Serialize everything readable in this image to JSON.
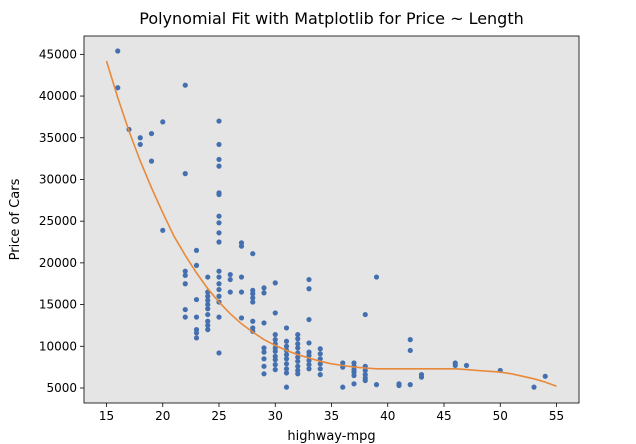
{
  "chart_data": {
    "type": "scatter",
    "title": "Polynomial Fit with Matplotlib for Price ~ Length",
    "xlabel": "highway-mpg",
    "ylabel": "Price of Cars",
    "xlim": [
      13,
      57
    ],
    "ylim": [
      3200,
      47200
    ],
    "xticks": [
      15,
      20,
      25,
      30,
      35,
      40,
      45,
      50,
      55
    ],
    "yticks": [
      5000,
      10000,
      15000,
      20000,
      25000,
      30000,
      35000,
      40000,
      45000
    ],
    "grid": false,
    "background": "#e5e5e5",
    "colors": {
      "points": "#4470b0",
      "fit": "#e8893a"
    },
    "points": [
      [
        16,
        45400
      ],
      [
        16,
        41000
      ],
      [
        17,
        36000
      ],
      [
        18,
        35000
      ],
      [
        18,
        34200
      ],
      [
        19,
        35500
      ],
      [
        19,
        32200
      ],
      [
        20,
        36900
      ],
      [
        20,
        23900
      ],
      [
        22,
        41300
      ],
      [
        22,
        30700
      ],
      [
        22,
        19000
      ],
      [
        22,
        18500
      ],
      [
        22,
        17500
      ],
      [
        22,
        14400
      ],
      [
        22,
        13500
      ],
      [
        23,
        21500
      ],
      [
        23,
        19700
      ],
      [
        23,
        15600
      ],
      [
        23,
        13500
      ],
      [
        23,
        12000
      ],
      [
        23,
        11600
      ],
      [
        23,
        11000
      ],
      [
        24,
        18300
      ],
      [
        24,
        16500
      ],
      [
        24,
        16000
      ],
      [
        24,
        15500
      ],
      [
        24,
        15000
      ],
      [
        24,
        14500
      ],
      [
        24,
        13800
      ],
      [
        24,
        13000
      ],
      [
        24,
        12500
      ],
      [
        24,
        12000
      ],
      [
        25,
        37000
      ],
      [
        25,
        34200
      ],
      [
        25,
        32400
      ],
      [
        25,
        31600
      ],
      [
        25,
        28400
      ],
      [
        25,
        28200
      ],
      [
        25,
        25600
      ],
      [
        25,
        24800
      ],
      [
        25,
        23600
      ],
      [
        25,
        22500
      ],
      [
        25,
        19000
      ],
      [
        25,
        18300
      ],
      [
        25,
        17500
      ],
      [
        25,
        16800
      ],
      [
        25,
        16000
      ],
      [
        25,
        15300
      ],
      [
        25,
        13500
      ],
      [
        25,
        9200
      ],
      [
        26,
        18600
      ],
      [
        26,
        18000
      ],
      [
        26,
        16500
      ],
      [
        27,
        22400
      ],
      [
        27,
        22000
      ],
      [
        27,
        18300
      ],
      [
        27,
        16500
      ],
      [
        27,
        13400
      ],
      [
        28,
        21100
      ],
      [
        28,
        16700
      ],
      [
        28,
        16300
      ],
      [
        28,
        15800
      ],
      [
        28,
        15300
      ],
      [
        28,
        13000
      ],
      [
        28,
        12200
      ],
      [
        28,
        11800
      ],
      [
        29,
        17000
      ],
      [
        29,
        16400
      ],
      [
        29,
        12800
      ],
      [
        29,
        9800
      ],
      [
        29,
        9300
      ],
      [
        29,
        8500
      ],
      [
        29,
        7600
      ],
      [
        29,
        6700
      ],
      [
        30,
        17600
      ],
      [
        30,
        14000
      ],
      [
        30,
        11400
      ],
      [
        30,
        10800
      ],
      [
        30,
        10300
      ],
      [
        30,
        9800
      ],
      [
        30,
        9400
      ],
      [
        30,
        8800
      ],
      [
        30,
        8400
      ],
      [
        30,
        7800
      ],
      [
        30,
        7200
      ],
      [
        31,
        12200
      ],
      [
        31,
        10600
      ],
      [
        31,
        10000
      ],
      [
        31,
        9500
      ],
      [
        31,
        9000
      ],
      [
        31,
        8500
      ],
      [
        31,
        7900
      ],
      [
        31,
        7300
      ],
      [
        31,
        6800
      ],
      [
        31,
        5100
      ],
      [
        32,
        11400
      ],
      [
        32,
        10900
      ],
      [
        32,
        10300
      ],
      [
        32,
        9800
      ],
      [
        32,
        9200
      ],
      [
        32,
        8700
      ],
      [
        32,
        8200
      ],
      [
        32,
        7600
      ],
      [
        32,
        7100
      ],
      [
        32,
        6700
      ],
      [
        33,
        18000
      ],
      [
        33,
        16900
      ],
      [
        33,
        13200
      ],
      [
        33,
        10400
      ],
      [
        33,
        9300
      ],
      [
        33,
        8900
      ],
      [
        33,
        8300
      ],
      [
        33,
        7800
      ],
      [
        33,
        7300
      ],
      [
        34,
        9700
      ],
      [
        34,
        9100
      ],
      [
        34,
        8500
      ],
      [
        34,
        7900
      ],
      [
        34,
        7300
      ],
      [
        34,
        6600
      ],
      [
        36,
        8000
      ],
      [
        36,
        7500
      ],
      [
        36,
        5100
      ],
      [
        37,
        8000
      ],
      [
        37,
        7600
      ],
      [
        37,
        7200
      ],
      [
        37,
        6900
      ],
      [
        37,
        6500
      ],
      [
        37,
        5500
      ],
      [
        38,
        13800
      ],
      [
        38,
        7600
      ],
      [
        38,
        7100
      ],
      [
        38,
        6600
      ],
      [
        38,
        6200
      ],
      [
        38,
        5900
      ],
      [
        39,
        18300
      ],
      [
        39,
        5400
      ],
      [
        41,
        5500
      ],
      [
        41,
        5300
      ],
      [
        42,
        10800
      ],
      [
        42,
        9500
      ],
      [
        42,
        5400
      ],
      [
        43,
        6600
      ],
      [
        43,
        6300
      ],
      [
        46,
        8000
      ],
      [
        46,
        7700
      ],
      [
        47,
        7700
      ],
      [
        50,
        7100
      ],
      [
        53,
        5100
      ],
      [
        54,
        6400
      ]
    ],
    "fit_curve": [
      [
        15,
        44200
      ],
      [
        16,
        39800
      ],
      [
        17,
        35800
      ],
      [
        18,
        32200
      ],
      [
        19,
        29000
      ],
      [
        20,
        26000
      ],
      [
        21,
        23200
      ],
      [
        22,
        20900
      ],
      [
        23,
        18800
      ],
      [
        24,
        16900
      ],
      [
        25,
        15300
      ],
      [
        26,
        13900
      ],
      [
        27,
        12700
      ],
      [
        28,
        11700
      ],
      [
        29,
        10800
      ],
      [
        30,
        10100
      ],
      [
        31,
        9500
      ],
      [
        32,
        9000
      ],
      [
        33,
        8600
      ],
      [
        34,
        8200
      ],
      [
        35,
        7900
      ],
      [
        36,
        7700
      ],
      [
        37,
        7500
      ],
      [
        38,
        7400
      ],
      [
        39,
        7300
      ],
      [
        40,
        7300
      ],
      [
        41,
        7300
      ],
      [
        42,
        7300
      ],
      [
        43,
        7300
      ],
      [
        44,
        7300
      ],
      [
        45,
        7300
      ],
      [
        46,
        7300
      ],
      [
        47,
        7200
      ],
      [
        48,
        7100
      ],
      [
        49,
        7000
      ],
      [
        50,
        6900
      ],
      [
        51,
        6700
      ],
      [
        52,
        6400
      ],
      [
        53,
        6100
      ],
      [
        54,
        5700
      ],
      [
        55,
        5200
      ]
    ]
  }
}
